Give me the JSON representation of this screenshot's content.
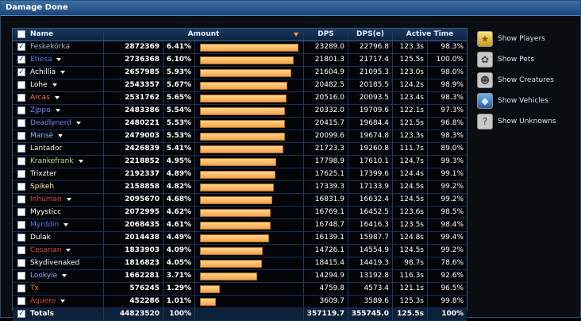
{
  "window": {
    "title": "Damage Done"
  },
  "headers": {
    "name": "Name",
    "amount": "Amount",
    "dps": "DPS",
    "dpse": "DPS(e)",
    "active": "Active Time"
  },
  "rows": [
    {
      "name": "Feskekörka",
      "color": "#a3b6c9",
      "checked": true,
      "dd": false,
      "amount": "2872369",
      "pct": "6.41%",
      "dps": "23289.0",
      "dpse": "22796.8",
      "time": "123.3s",
      "tpct": "98.3%",
      "share": 6.41
    },
    {
      "name": "Etiesa",
      "color": "#4f7cf7",
      "checked": true,
      "dd": true,
      "amount": "2736368",
      "pct": "6.10%",
      "dps": "21801.3",
      "dpse": "21717.4",
      "time": "125.5s",
      "tpct": "100.0%",
      "share": 6.1
    },
    {
      "name": "Achillia",
      "color": "#ffffff",
      "checked": true,
      "dd": true,
      "amount": "2657985",
      "pct": "5.93%",
      "dps": "21604.9",
      "dpse": "21095.3",
      "time": "123.0s",
      "tpct": "98.0%",
      "share": 5.93
    },
    {
      "name": "Lohe",
      "color": "#ffffff",
      "checked": false,
      "dd": true,
      "amount": "2543357",
      "pct": "5.67%",
      "dps": "20482.5",
      "dpse": "20185.5",
      "time": "124.2s",
      "tpct": "98.9%",
      "share": 5.67
    },
    {
      "name": "Arcas",
      "color": "#f27a3a",
      "checked": false,
      "dd": true,
      "amount": "2531762",
      "pct": "5.65%",
      "dps": "20516.0",
      "dpse": "20093.5",
      "time": "123.4s",
      "tpct": "98.3%",
      "share": 5.65
    },
    {
      "name": "Zjppo",
      "color": "#7b86f8",
      "checked": false,
      "dd": true,
      "amount": "2483386",
      "pct": "5.54%",
      "dps": "20332.0",
      "dpse": "19709.6",
      "time": "122.1s",
      "tpct": "97.3%",
      "share": 5.54
    },
    {
      "name": "Deadlynerd",
      "color": "#7b86f8",
      "checked": false,
      "dd": true,
      "amount": "2480221",
      "pct": "5.53%",
      "dps": "20415.7",
      "dpse": "19684.4",
      "time": "121.5s",
      "tpct": "96.8%",
      "share": 5.53
    },
    {
      "name": "Mansè",
      "color": "#7ec0ff",
      "checked": false,
      "dd": true,
      "amount": "2479003",
      "pct": "5.53%",
      "dps": "20099.6",
      "dpse": "19674.8",
      "time": "123.3s",
      "tpct": "98.3%",
      "share": 5.53
    },
    {
      "name": "Lantador",
      "color": "#f0ead2",
      "checked": false,
      "dd": false,
      "amount": "2426839",
      "pct": "5.41%",
      "dps": "21723.3",
      "dpse": "19260.8",
      "time": "111.7s",
      "tpct": "89.0%",
      "share": 5.41
    },
    {
      "name": "Krankefrank",
      "color": "#b9e68a",
      "checked": false,
      "dd": true,
      "amount": "2218852",
      "pct": "4.95%",
      "dps": "17798.9",
      "dpse": "17610.1",
      "time": "124.7s",
      "tpct": "99.3%",
      "share": 4.95
    },
    {
      "name": "Trixzter",
      "color": "#ffffff",
      "checked": false,
      "dd": false,
      "amount": "2192337",
      "pct": "4.89%",
      "dps": "17625.1",
      "dpse": "17399.6",
      "time": "124.4s",
      "tpct": "99.1%",
      "share": 4.89
    },
    {
      "name": "Spikeh",
      "color": "#ffe9a8",
      "checked": false,
      "dd": false,
      "amount": "2158858",
      "pct": "4.82%",
      "dps": "17339.3",
      "dpse": "17133.9",
      "time": "124.5s",
      "tpct": "99.2%",
      "share": 4.82
    },
    {
      "name": "Inhuman",
      "color": "#e04444",
      "checked": false,
      "dd": true,
      "amount": "2095670",
      "pct": "4.68%",
      "dps": "16831.9",
      "dpse": "16632.4",
      "time": "124.5s",
      "tpct": "99.2%",
      "share": 4.68
    },
    {
      "name": "Myysticc",
      "color": "#ffffff",
      "checked": false,
      "dd": false,
      "amount": "2072995",
      "pct": "4.62%",
      "dps": "16769.1",
      "dpse": "16452.5",
      "time": "123.6s",
      "tpct": "98.5%",
      "share": 4.62
    },
    {
      "name": "Myrddin",
      "color": "#4f7cf7",
      "checked": false,
      "dd": true,
      "amount": "2068435",
      "pct": "4.61%",
      "dps": "16748.7",
      "dpse": "16416.3",
      "time": "123.5s",
      "tpct": "98.4%",
      "share": 4.61
    },
    {
      "name": "Dulak",
      "color": "#ffffff",
      "checked": false,
      "dd": false,
      "amount": "2014438",
      "pct": "4.49%",
      "dps": "16139.1",
      "dpse": "15987.7",
      "time": "124.8s",
      "tpct": "99.4%",
      "share": 4.49
    },
    {
      "name": "Cesarian",
      "color": "#e04444",
      "checked": false,
      "dd": true,
      "amount": "1833903",
      "pct": "4.09%",
      "dps": "14726.1",
      "dpse": "14554.9",
      "time": "124.5s",
      "tpct": "99.2%",
      "share": 4.09
    },
    {
      "name": "Skydivenaked",
      "color": "#ffffff",
      "checked": false,
      "dd": false,
      "amount": "1816823",
      "pct": "4.05%",
      "dps": "18415.4",
      "dpse": "14419.3",
      "time": "98.7s",
      "tpct": "78.6%",
      "share": 4.05
    },
    {
      "name": "Lookyie",
      "color": "#9aa2ff",
      "checked": false,
      "dd": true,
      "amount": "1662281",
      "pct": "3.71%",
      "dps": "14294.9",
      "dpse": "13192.8",
      "time": "116.3s",
      "tpct": "92.6%",
      "share": 3.71
    },
    {
      "name": "Tx",
      "color": "#f27a3a",
      "checked": false,
      "dd": false,
      "amount": "576245",
      "pct": "1.29%",
      "dps": "4759.8",
      "dpse": "4573.4",
      "time": "121.1s",
      "tpct": "96.5%",
      "share": 1.29
    },
    {
      "name": "Aguero",
      "color": "#e04444",
      "checked": false,
      "dd": true,
      "amount": "452286",
      "pct": "1.01%",
      "dps": "3609.7",
      "dpse": "3589.6",
      "time": "125.3s",
      "tpct": "99.8%",
      "share": 1.01
    }
  ],
  "totals": {
    "label": "Totals",
    "amount": "44823520",
    "pct": "100%",
    "dps": "357119.7",
    "dpse": "355745.0",
    "time": "125.5s",
    "tpct": "100%"
  },
  "legend": [
    {
      "label": "Show Players",
      "icon": "player-icon",
      "glyph": "★"
    },
    {
      "label": "Show Pets",
      "icon": "pet-icon",
      "glyph": "✿"
    },
    {
      "label": "Show Creatures",
      "icon": "creature-icon",
      "glyph": "☻"
    },
    {
      "label": "Show Vehicles",
      "icon": "vehicle-icon",
      "glyph": "◆"
    },
    {
      "label": "Show Unknowns",
      "icon": "unknown-icon",
      "glyph": "?"
    }
  ]
}
